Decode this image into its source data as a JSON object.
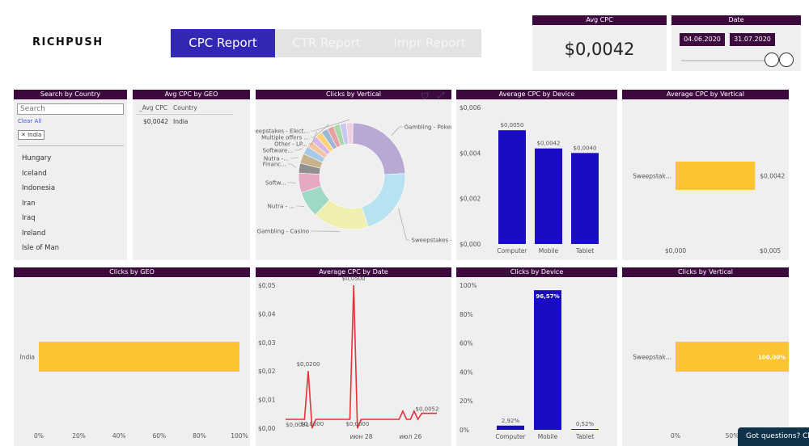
{
  "brand": "RICHPUSH",
  "tabs": [
    {
      "label": "CPC Report",
      "active": true
    },
    {
      "label": "CTR Report",
      "active": false
    },
    {
      "label": "Impr Report",
      "active": false
    }
  ],
  "avg_cpc_card": {
    "title": "Avg CPC",
    "value": "$0,0042"
  },
  "date_card": {
    "title": "Date",
    "start": "04.06.2020",
    "end": "31.07.2020"
  },
  "search_country": {
    "title": "Search by Country",
    "placeholder": "Search",
    "clear_all": "Clear All",
    "chip": "India",
    "countries": [
      "Hungary",
      "Iceland",
      "Indonesia",
      "Iran",
      "Iraq",
      "Ireland",
      "Isle of Man"
    ]
  },
  "avg_cpc_geo": {
    "title": "Avg CPC by GEO",
    "columns": [
      "_Avg CPC",
      "Country"
    ],
    "rows": [
      [
        "$0,0042",
        "India"
      ]
    ]
  },
  "clicks_vertical_donut": {
    "title": "Clicks by Vertical"
  },
  "avg_cpc_device": {
    "title": "Average CPC by Device"
  },
  "avg_cpc_vertical": {
    "title": "Average CPC by Vertical"
  },
  "clicks_geo": {
    "title": "Clicks by GEO"
  },
  "avg_cpc_date": {
    "title": "Average CPC by Date"
  },
  "clicks_device": {
    "title": "Clicks by Device"
  },
  "clicks_vertical_bar": {
    "title": "Clicks by Vertical"
  },
  "chat_button": "Got questions? Ch",
  "colors": {
    "header": "#3d0a3f",
    "tab_active": "#3327b5",
    "bar_blue": "#1a0cc4",
    "bar_yellow": "#fdc431",
    "line_red": "#e8303a"
  },
  "chart_data": [
    {
      "id": "donut",
      "type": "pie",
      "title": "Clicks by Vertical",
      "slices": [
        {
          "label": "Gambling - Poker",
          "value": 24,
          "color": "#b8a9d4"
        },
        {
          "label": "Sweepstakes - Other",
          "value": 21,
          "color": "#b6e3ef"
        },
        {
          "label": "Gambling - Casino",
          "value": 17,
          "color": "#f1efb0"
        },
        {
          "label": "Nutra - ...",
          "value": 8,
          "color": "#9fd8c4"
        },
        {
          "label": "Softw...",
          "value": 6,
          "color": "#e5a9c4"
        },
        {
          "label": "Financ...",
          "value": 3,
          "color": "#8f8f8f"
        },
        {
          "label": "Nutra -...",
          "value": 3,
          "color": "#c7b38c"
        },
        {
          "label": "Software...",
          "value": 2.5,
          "color": "#a8c8e8"
        },
        {
          "label": "",
          "value": 2,
          "color": "#f4c6a0"
        },
        {
          "label": "",
          "value": 2,
          "color": "#d7b6e8"
        },
        {
          "label": "Other - LP...",
          "value": 2,
          "color": "#ffd27a"
        },
        {
          "label": "",
          "value": 2,
          "color": "#9ab8d8"
        },
        {
          "label": "Multiple offers ...",
          "value": 2,
          "color": "#e8a0a0"
        },
        {
          "label": "",
          "value": 2,
          "color": "#a8d8a8"
        },
        {
          "label": "",
          "value": 2,
          "color": "#c8c8f0"
        },
        {
          "label": "Sweepstakes - Elect...",
          "value": 2,
          "color": "#f0d0e0"
        }
      ]
    },
    {
      "id": "cpc_device",
      "type": "bar",
      "title": "Average CPC by Device",
      "categories": [
        "Computer",
        "Mobile",
        "Tablet"
      ],
      "values": [
        0.005,
        0.0042,
        0.004
      ],
      "value_labels": [
        "$0,0050",
        "$0,0042",
        "$0,0040"
      ],
      "y_ticks": [
        "$0,000",
        "$0,002",
        "$0,004",
        "$0,006"
      ],
      "ylim": [
        0,
        0.006
      ]
    },
    {
      "id": "cpc_vertical",
      "type": "bar",
      "orientation": "horizontal",
      "title": "Average CPC by Vertical",
      "categories": [
        "Sweepstak..."
      ],
      "values": [
        0.0042
      ],
      "value_labels": [
        "$0,0042"
      ],
      "x_ticks": [
        "$0,000",
        "$0,005"
      ],
      "xlim": [
        0,
        0.005
      ]
    },
    {
      "id": "clicks_geo",
      "type": "bar",
      "orientation": "horizontal",
      "title": "Clicks by GEO",
      "categories": [
        "India"
      ],
      "values": [
        100
      ],
      "x_ticks": [
        "0%",
        "20%",
        "40%",
        "60%",
        "80%",
        "100%"
      ],
      "xlim": [
        0,
        100
      ]
    },
    {
      "id": "cpc_date",
      "type": "line",
      "title": "Average CPC by Date",
      "x": [
        0,
        1,
        2,
        3,
        4,
        5,
        6,
        7,
        8,
        9,
        10,
        11,
        12,
        13,
        14,
        15,
        16,
        17,
        18,
        19,
        20,
        21,
        22,
        23,
        24,
        25,
        26,
        27,
        28,
        29,
        30,
        31,
        32,
        33,
        34,
        35,
        36,
        37,
        38,
        39,
        40
      ],
      "y": [
        0.0031,
        0.0031,
        0.0031,
        0.0031,
        0.0031,
        0.0031,
        0.02,
        0.0,
        0.0031,
        0.0031,
        0.0031,
        0.0031,
        0.0031,
        0.0031,
        0.0031,
        0.0031,
        0.0031,
        0.0031,
        0.05,
        0.0,
        0.0031,
        0.0031,
        0.0031,
        0.0031,
        0.0031,
        0.0031,
        0.0031,
        0.0031,
        0.0031,
        0.0031,
        0.0031,
        0.006,
        0.0031,
        0.0031,
        0.006,
        0.0031,
        0.0052,
        0.0052,
        0.0052,
        0.0052,
        0.0052
      ],
      "point_labels": [
        {
          "i": 0,
          "text": "$0,0031"
        },
        {
          "i": 6,
          "text": "$0,0200"
        },
        {
          "i": 7,
          "text": "$0,0000"
        },
        {
          "i": 18,
          "text": "$0,0500"
        },
        {
          "i": 19,
          "text": "$0,0000"
        },
        {
          "i": 37,
          "text": "$0,0052"
        }
      ],
      "y_ticks": [
        "$0,00",
        "$0,01",
        "$0,02",
        "$0,03",
        "$0,04",
        "$0,05"
      ],
      "x_ticks": [
        "июн 28",
        "июл 26"
      ],
      "ylim": [
        0,
        0.05
      ]
    },
    {
      "id": "clicks_device",
      "type": "bar",
      "title": "Clicks by Device",
      "categories": [
        "Computer",
        "Mobile",
        "Tablet"
      ],
      "values": [
        2.92,
        96.57,
        0.52
      ],
      "value_labels": [
        "2,92%",
        "96,57%",
        "0,52%"
      ],
      "y_ticks": [
        "0%",
        "20%",
        "40%",
        "60%",
        "80%",
        "100%"
      ],
      "ylim": [
        0,
        100
      ]
    },
    {
      "id": "clicks_vertical_bar",
      "type": "bar",
      "orientation": "horizontal",
      "title": "Clicks by Vertical",
      "categories": [
        "Sweepstak..."
      ],
      "values": [
        100
      ],
      "value_labels": [
        "100,00%"
      ],
      "x_ticks": [
        "0%",
        "50%"
      ],
      "xlim": [
        0,
        100
      ]
    }
  ]
}
